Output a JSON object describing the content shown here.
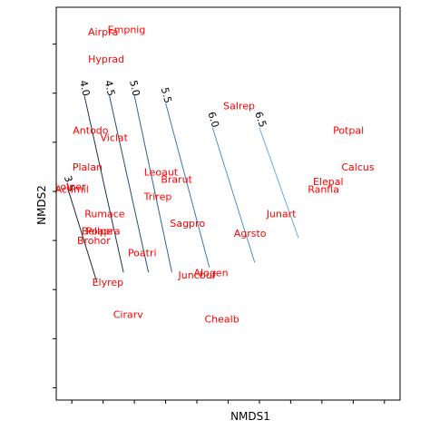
{
  "chart_data": {
    "type": "scatter",
    "title": "",
    "xlabel": "NMDS1",
    "ylabel": "NMDS2",
    "xlim": [
      -1.1,
      1.1
    ],
    "ylim": [
      -0.65,
      0.95
    ],
    "xticks": [
      -1.0,
      -0.8,
      -0.6,
      -0.4,
      -0.2,
      0.0,
      0.2,
      0.4,
      0.6,
      0.8,
      1.0
    ],
    "yticks": [
      -0.6,
      -0.4,
      -0.2,
      0.0,
      0.2,
      0.4,
      0.6,
      0.8
    ],
    "tick_labels_visible": false,
    "grid": false,
    "points_marker": "text labels",
    "species": [
      {
        "label": "Airpra",
        "x": -0.8,
        "y": 0.85
      },
      {
        "label": "Empnig",
        "x": -0.65,
        "y": 0.86
      },
      {
        "label": "Hyprad",
        "x": -0.78,
        "y": 0.74
      },
      {
        "label": "Salrep",
        "x": 0.07,
        "y": 0.55
      },
      {
        "label": "Potpal",
        "x": 0.77,
        "y": 0.45
      },
      {
        "label": "Antodo",
        "x": -0.88,
        "y": 0.45
      },
      {
        "label": "Viclat",
        "x": -0.73,
        "y": 0.42
      },
      {
        "label": "Calcus",
        "x": 0.83,
        "y": 0.3
      },
      {
        "label": "Plalan",
        "x": -0.9,
        "y": 0.3
      },
      {
        "label": "Leoaut",
        "x": -0.43,
        "y": 0.28
      },
      {
        "label": "Brarut",
        "x": -0.33,
        "y": 0.25
      },
      {
        "label": "Elepal",
        "x": 0.64,
        "y": 0.24
      },
      {
        "label": "Ranfla",
        "x": 0.61,
        "y": 0.21
      },
      {
        "label": "Achmil",
        "x": -1.0,
        "y": 0.21
      },
      {
        "label": "Lolper",
        "x": -1.01,
        "y": 0.22
      },
      {
        "label": "Trirep",
        "x": -0.45,
        "y": 0.18
      },
      {
        "label": "Junart",
        "x": 0.34,
        "y": 0.11
      },
      {
        "label": "Rumace",
        "x": -0.79,
        "y": 0.11
      },
      {
        "label": "Sagpro",
        "x": -0.26,
        "y": 0.07
      },
      {
        "label": "Bellpe",
        "x": -0.84,
        "y": 0.04
      },
      {
        "label": "Poapra",
        "x": -0.8,
        "y": 0.04
      },
      {
        "label": "Agrsto",
        "x": 0.14,
        "y": 0.03
      },
      {
        "label": "Brohor",
        "x": -0.86,
        "y": 0.0
      },
      {
        "label": "Poatri",
        "x": -0.55,
        "y": -0.05
      },
      {
        "label": "Juncbuf",
        "x": -0.2,
        "y": -0.14
      },
      {
        "label": "Alogen",
        "x": -0.11,
        "y": -0.13
      },
      {
        "label": "Elyrep",
        "x": -0.77,
        "y": -0.17
      },
      {
        "label": "Cirarv",
        "x": -0.64,
        "y": -0.3
      },
      {
        "label": "Chealb",
        "x": -0.04,
        "y": -0.32
      }
    ],
    "contours": [
      {
        "level": "3.5",
        "from": [
          -1.02,
          0.2
        ],
        "to": [
          -0.84,
          -0.17
        ],
        "color": "#1e2430"
      },
      {
        "level": "4.0",
        "from": [
          -0.92,
          0.59
        ],
        "to": [
          -0.67,
          -0.13
        ],
        "color": "#1f3348"
      },
      {
        "level": "4.5",
        "from": [
          -0.76,
          0.59
        ],
        "to": [
          -0.51,
          -0.13
        ],
        "color": "#245077"
      },
      {
        "level": "5.0",
        "from": [
          -0.6,
          0.59
        ],
        "to": [
          -0.36,
          -0.13
        ],
        "color": "#2c6499"
      },
      {
        "level": "5.5",
        "from": [
          -0.4,
          0.56
        ],
        "to": [
          -0.12,
          -0.11
        ],
        "color": "#3578b5"
      },
      {
        "level": "6.0",
        "from": [
          -0.1,
          0.46
        ],
        "to": [
          0.17,
          -0.09
        ],
        "color": "#4c92d0"
      },
      {
        "level": "6.5",
        "from": [
          0.2,
          0.46
        ],
        "to": [
          0.45,
          0.01
        ],
        "color": "#62aeea"
      }
    ]
  }
}
